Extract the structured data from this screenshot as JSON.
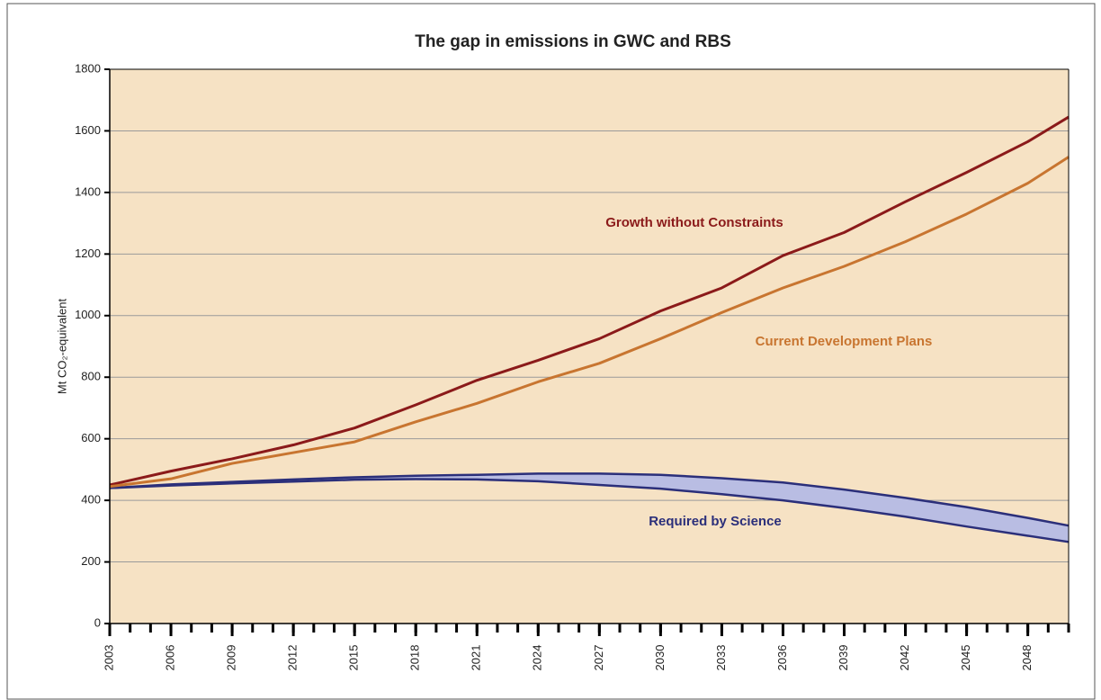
{
  "chart_data": {
    "type": "line",
    "title": "The gap in emissions in GWC and RBS",
    "ylabel": "Mt CO₂-equivalent",
    "x": [
      2003,
      2006,
      2009,
      2012,
      2015,
      2018,
      2021,
      2024,
      2027,
      2030,
      2033,
      2036,
      2039,
      2042,
      2045,
      2048,
      2050
    ],
    "series": [
      {
        "name": "Growth without Constraints",
        "color": "#8b1a1a",
        "values": [
          450,
          495,
          535,
          580,
          635,
          710,
          790,
          855,
          925,
          1015,
          1090,
          1195,
          1270,
          1370,
          1465,
          1565,
          1645
        ]
      },
      {
        "name": "Current Development Plans",
        "color": "#c87530",
        "values": [
          445,
          470,
          520,
          555,
          590,
          655,
          715,
          785,
          845,
          925,
          1010,
          1090,
          1160,
          1240,
          1330,
          1430,
          1515
        ]
      }
    ],
    "band": {
      "name": "Required by Science",
      "color": "#2b2f7a",
      "fill": "#b9bde3",
      "upper": [
        440,
        452,
        460,
        468,
        475,
        480,
        483,
        487,
        487,
        483,
        472,
        458,
        435,
        408,
        378,
        343,
        318
      ],
      "lower": [
        440,
        448,
        455,
        461,
        467,
        469,
        468,
        462,
        450,
        438,
        420,
        400,
        375,
        347,
        315,
        285,
        265
      ]
    },
    "xlim": [
      2003,
      2050
    ],
    "xticks": [
      2003,
      2006,
      2009,
      2012,
      2015,
      2018,
      2021,
      2024,
      2027,
      2030,
      2033,
      2036,
      2039,
      2042,
      2045,
      2048
    ],
    "ylim": [
      0,
      1800
    ],
    "yticks": [
      0,
      200,
      400,
      600,
      800,
      1000,
      1200,
      1400,
      1600,
      1800
    ],
    "grid": true,
    "background": "#f6e2c4"
  }
}
